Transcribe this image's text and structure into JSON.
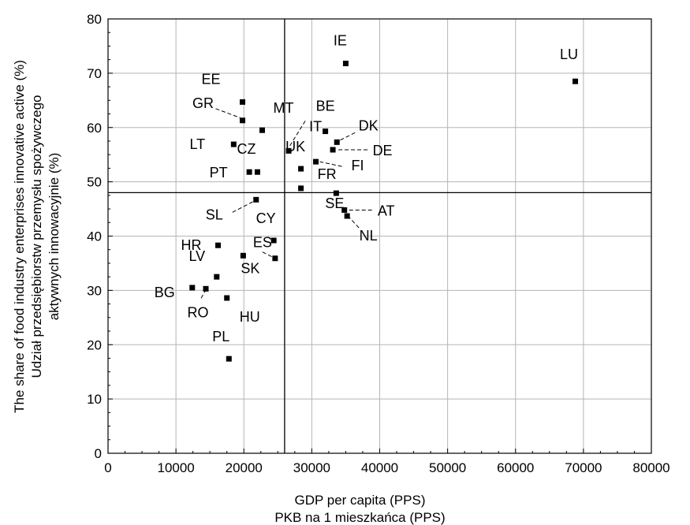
{
  "chart_data": {
    "type": "scatter",
    "xlabel": [
      "GDP per capita (PPS)",
      "PKB na 1 mieszkańca (PPS)"
    ],
    "ylabel": [
      "The share of food industry enterprises innovative active (%)",
      "Udział przedsiębiorstw przemysłu spożywczego",
      "aktywnych innowacyjnie (%)"
    ],
    "xlim": [
      0,
      80000
    ],
    "ylim": [
      0,
      80
    ],
    "xticks": [
      "0",
      "10000",
      "20000",
      "30000",
      "40000",
      "50000",
      "60000",
      "70000",
      "80000"
    ],
    "yticks": [
      "0",
      "10",
      "20",
      "30",
      "40",
      "50",
      "60",
      "70",
      "80"
    ],
    "grid": true,
    "reference_lines": {
      "x": 26000,
      "y": 48
    },
    "points": [
      {
        "label": "LU",
        "x": 68800,
        "y": 68.5
      },
      {
        "label": "IE",
        "x": 35000,
        "y": 71.8
      },
      {
        "label": "EE",
        "x": 19800,
        "y": 64.7
      },
      {
        "label": "GR",
        "x": 19800,
        "y": 61.3
      },
      {
        "label": "MT",
        "x": 22700,
        "y": 59.5
      },
      {
        "label": "IT",
        "x": 26600,
        "y": 55.7
      },
      {
        "label": "BE",
        "x": 32000,
        "y": 59.3
      },
      {
        "label": "DK",
        "x": 33700,
        "y": 57.3
      },
      {
        "label": "DE",
        "x": 33100,
        "y": 55.9
      },
      {
        "label": "LT",
        "x": 18500,
        "y": 56.9
      },
      {
        "label": "CZ",
        "x": 22000,
        "y": 51.8
      },
      {
        "label": "PT",
        "x": 20800,
        "y": 51.8
      },
      {
        "label": "UK",
        "x": 28400,
        "y": 52.4
      },
      {
        "label": "FI",
        "x": 30600,
        "y": 53.7
      },
      {
        "label": "FR",
        "x": 28400,
        "y": 48.8
      },
      {
        "label": "SE",
        "x": 33600,
        "y": 47.9
      },
      {
        "label": "AT",
        "x": 34800,
        "y": 44.8
      },
      {
        "label": "NL",
        "x": 35200,
        "y": 43.7
      },
      {
        "label": "SL",
        "x": 21800,
        "y": 46.7
      },
      {
        "label": "CY",
        "x": 24400,
        "y": 39.2
      },
      {
        "label": "HR",
        "x": 16200,
        "y": 38.3
      },
      {
        "label": "ES",
        "x": 24600,
        "y": 35.9
      },
      {
        "label": "SK",
        "x": 19900,
        "y": 36.4
      },
      {
        "label": "LV",
        "x": 16000,
        "y": 32.5
      },
      {
        "label": "BG",
        "x": 12400,
        "y": 30.5
      },
      {
        "label": "RO",
        "x": 14400,
        "y": 30.3
      },
      {
        "label": "HU",
        "x": 17500,
        "y": 28.6
      },
      {
        "label": "PL",
        "x": 17800,
        "y": 17.4
      }
    ]
  }
}
